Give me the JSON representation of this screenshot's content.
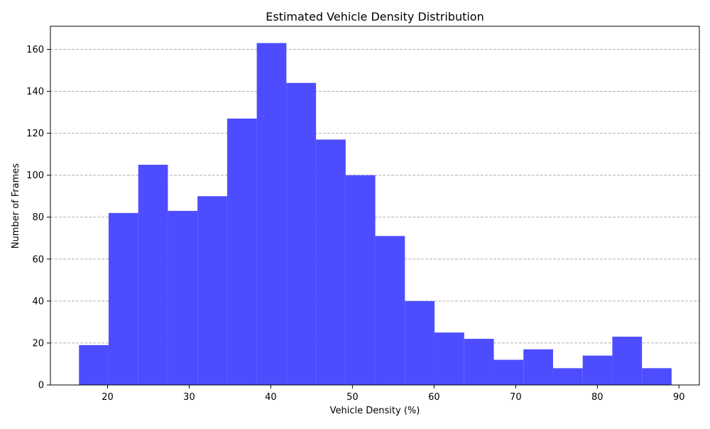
{
  "chart_data": {
    "type": "bar",
    "title": "Estimated Vehicle Density Distribution",
    "xlabel": "Vehicle Density (%)",
    "ylabel": "Number of Frames",
    "xlim": [
      13.0,
      92.5
    ],
    "ylim": [
      0,
      171
    ],
    "xticks": [
      20,
      30,
      40,
      50,
      60,
      70,
      80,
      90
    ],
    "yticks": [
      0,
      20,
      40,
      60,
      80,
      100,
      120,
      140,
      160
    ],
    "grid": {
      "axis": "y",
      "style": "dashed"
    },
    "bar_color": "#4d4dff",
    "bins": [
      {
        "start": 16.5,
        "end": 20.13,
        "value": 19
      },
      {
        "start": 20.13,
        "end": 23.76,
        "value": 82
      },
      {
        "start": 23.76,
        "end": 27.39,
        "value": 105
      },
      {
        "start": 27.39,
        "end": 31.02,
        "value": 83
      },
      {
        "start": 31.02,
        "end": 34.65,
        "value": 90
      },
      {
        "start": 34.65,
        "end": 38.28,
        "value": 127
      },
      {
        "start": 38.28,
        "end": 41.91,
        "value": 163
      },
      {
        "start": 41.91,
        "end": 45.54,
        "value": 144
      },
      {
        "start": 45.54,
        "end": 49.17,
        "value": 117
      },
      {
        "start": 49.17,
        "end": 52.8,
        "value": 100
      },
      {
        "start": 52.8,
        "end": 56.43,
        "value": 71
      },
      {
        "start": 56.43,
        "end": 60.06,
        "value": 40
      },
      {
        "start": 60.06,
        "end": 63.69,
        "value": 25
      },
      {
        "start": 63.69,
        "end": 67.32,
        "value": 22
      },
      {
        "start": 67.32,
        "end": 70.95,
        "value": 12
      },
      {
        "start": 70.95,
        "end": 74.58,
        "value": 17
      },
      {
        "start": 74.58,
        "end": 78.21,
        "value": 8
      },
      {
        "start": 78.21,
        "end": 81.84,
        "value": 14
      },
      {
        "start": 81.84,
        "end": 85.47,
        "value": 23
      },
      {
        "start": 85.47,
        "end": 89.1,
        "value": 8
      }
    ]
  }
}
